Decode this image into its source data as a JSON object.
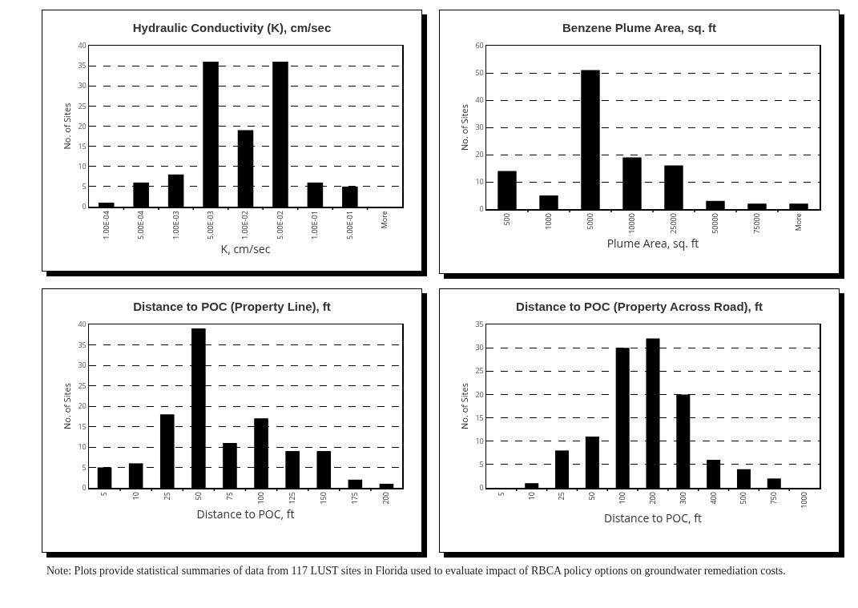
{
  "chart_data": [
    {
      "type": "bar",
      "title": "Hydraulic Conductivity (K), cm/sec",
      "xlabel": "K, cm/sec",
      "ylabel": "No. of Sites",
      "categories": [
        "1.00E-04",
        "5.00E-04",
        "1.00E-03",
        "5.00E-03",
        "1.00E-02",
        "5.00E-02",
        "1.00E-01",
        "5.00E-01",
        "More"
      ],
      "values": [
        1,
        6,
        8,
        36,
        19,
        36,
        6,
        5,
        0
      ],
      "color": "#000000",
      "ylim": [
        0,
        40
      ],
      "yticks": [
        0,
        5,
        10,
        15,
        20,
        25,
        30,
        35,
        40
      ],
      "grid": "y"
    },
    {
      "type": "bar",
      "title": "Benzene Plume Area, sq. ft",
      "xlabel": "Plume Area, sq. ft",
      "ylabel": "No. of Sites",
      "categories": [
        "500",
        "1000",
        "5000",
        "10000",
        "25000",
        "50000",
        "75000",
        "More"
      ],
      "values": [
        14,
        5,
        51,
        19,
        16,
        3,
        2,
        2
      ],
      "color": "#000000",
      "ylim": [
        0,
        60
      ],
      "yticks": [
        0,
        10,
        20,
        30,
        40,
        50,
        60
      ],
      "grid": "y"
    },
    {
      "type": "bar",
      "title": "Distance to POC (Property Line), ft",
      "xlabel": "Distance to POC, ft",
      "ylabel": "No. of Sites",
      "categories": [
        "5",
        "10",
        "25",
        "50",
        "75",
        "100",
        "125",
        "150",
        "175",
        "200"
      ],
      "values": [
        5,
        6,
        18,
        39,
        11,
        17,
        9,
        9,
        2,
        1
      ],
      "color": "#000000",
      "ylim": [
        0,
        40
      ],
      "yticks": [
        0,
        5,
        10,
        15,
        20,
        25,
        30,
        35,
        40
      ],
      "grid": "y"
    },
    {
      "type": "bar",
      "title": "Distance to POC (Property Across Road), ft",
      "xlabel": "Distance to POC, ft",
      "ylabel": "No. of Sites",
      "categories": [
        "5",
        "10",
        "25",
        "50",
        "100",
        "200",
        "300",
        "400",
        "500",
        "750",
        "1000"
      ],
      "values": [
        0,
        1,
        8,
        11,
        30,
        32,
        20,
        6,
        4,
        2,
        0
      ],
      "color": "#000000",
      "ylim": [
        0,
        35
      ],
      "yticks": [
        0,
        5,
        10,
        15,
        20,
        25,
        30,
        35
      ],
      "grid": "y",
      "annotations": [
        "Note: Plots provide statistical summaries of data from 117 LUST sites in Florida used to evaluate impact of RBCA policy options on groundwater remediation costs."
      ]
    }
  ]
}
